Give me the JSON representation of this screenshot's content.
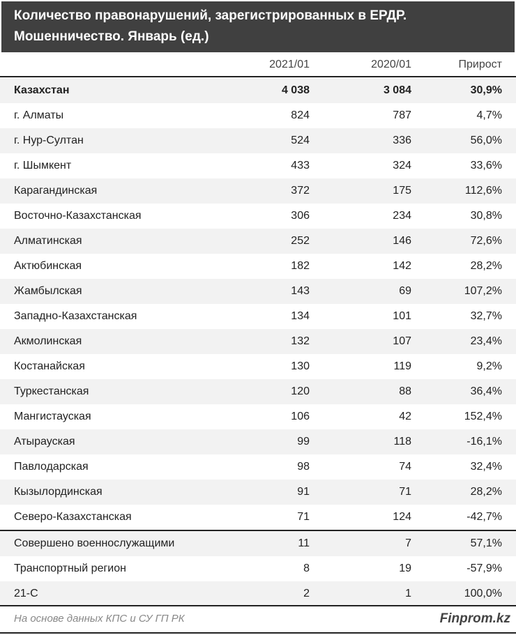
{
  "title": {
    "line1": "Количество правонарушений, зарегистрированных в ЕРДР.",
    "line2": "Мошенничество. Январь (ед.)"
  },
  "columns": [
    "",
    "2021/01",
    "2020/01",
    "Прирост"
  ],
  "rows": [
    [
      "Казахстан",
      "4 038",
      "3 084",
      "30,9%"
    ],
    [
      "г. Алматы",
      "824",
      "787",
      "4,7%"
    ],
    [
      "г. Нур-Султан",
      "524",
      "336",
      "56,0%"
    ],
    [
      "г. Шымкент",
      "433",
      "324",
      "33,6%"
    ],
    [
      "Карагандинская",
      "372",
      "175",
      "112,6%"
    ],
    [
      "Восточно-Казахстанская",
      "306",
      "234",
      "30,8%"
    ],
    [
      "Алматинская",
      "252",
      "146",
      "72,6%"
    ],
    [
      "Актюбинская",
      "182",
      "142",
      "28,2%"
    ],
    [
      "Жамбылская",
      "143",
      "69",
      "107,2%"
    ],
    [
      "Западно-Казахстанская",
      "134",
      "101",
      "32,7%"
    ],
    [
      "Акмолинская",
      "132",
      "107",
      "23,4%"
    ],
    [
      "Костанайская",
      "130",
      "119",
      "9,2%"
    ],
    [
      "Туркестанская",
      "120",
      "88",
      "36,4%"
    ],
    [
      "Мангистауская",
      "106",
      "42",
      "152,4%"
    ],
    [
      "Атырауская",
      "99",
      "118",
      "-16,1%"
    ],
    [
      "Павлодарская",
      "98",
      "74",
      "32,4%"
    ],
    [
      "Кызылординская",
      "91",
      "71",
      "28,2%"
    ],
    [
      "Северо-Казахстанская",
      "71",
      "124",
      "-42,7%"
    ],
    [
      "Совершено военнослужащими",
      "11",
      "7",
      "57,1%"
    ],
    [
      "Транспортный регион",
      "8",
      "19",
      "-57,9%"
    ],
    [
      "21-С",
      "2",
      "1",
      "100,0%"
    ]
  ],
  "footer": {
    "source": "На основе данных КПС и СУ ГП РК",
    "brand": "Finprom.kz"
  }
}
